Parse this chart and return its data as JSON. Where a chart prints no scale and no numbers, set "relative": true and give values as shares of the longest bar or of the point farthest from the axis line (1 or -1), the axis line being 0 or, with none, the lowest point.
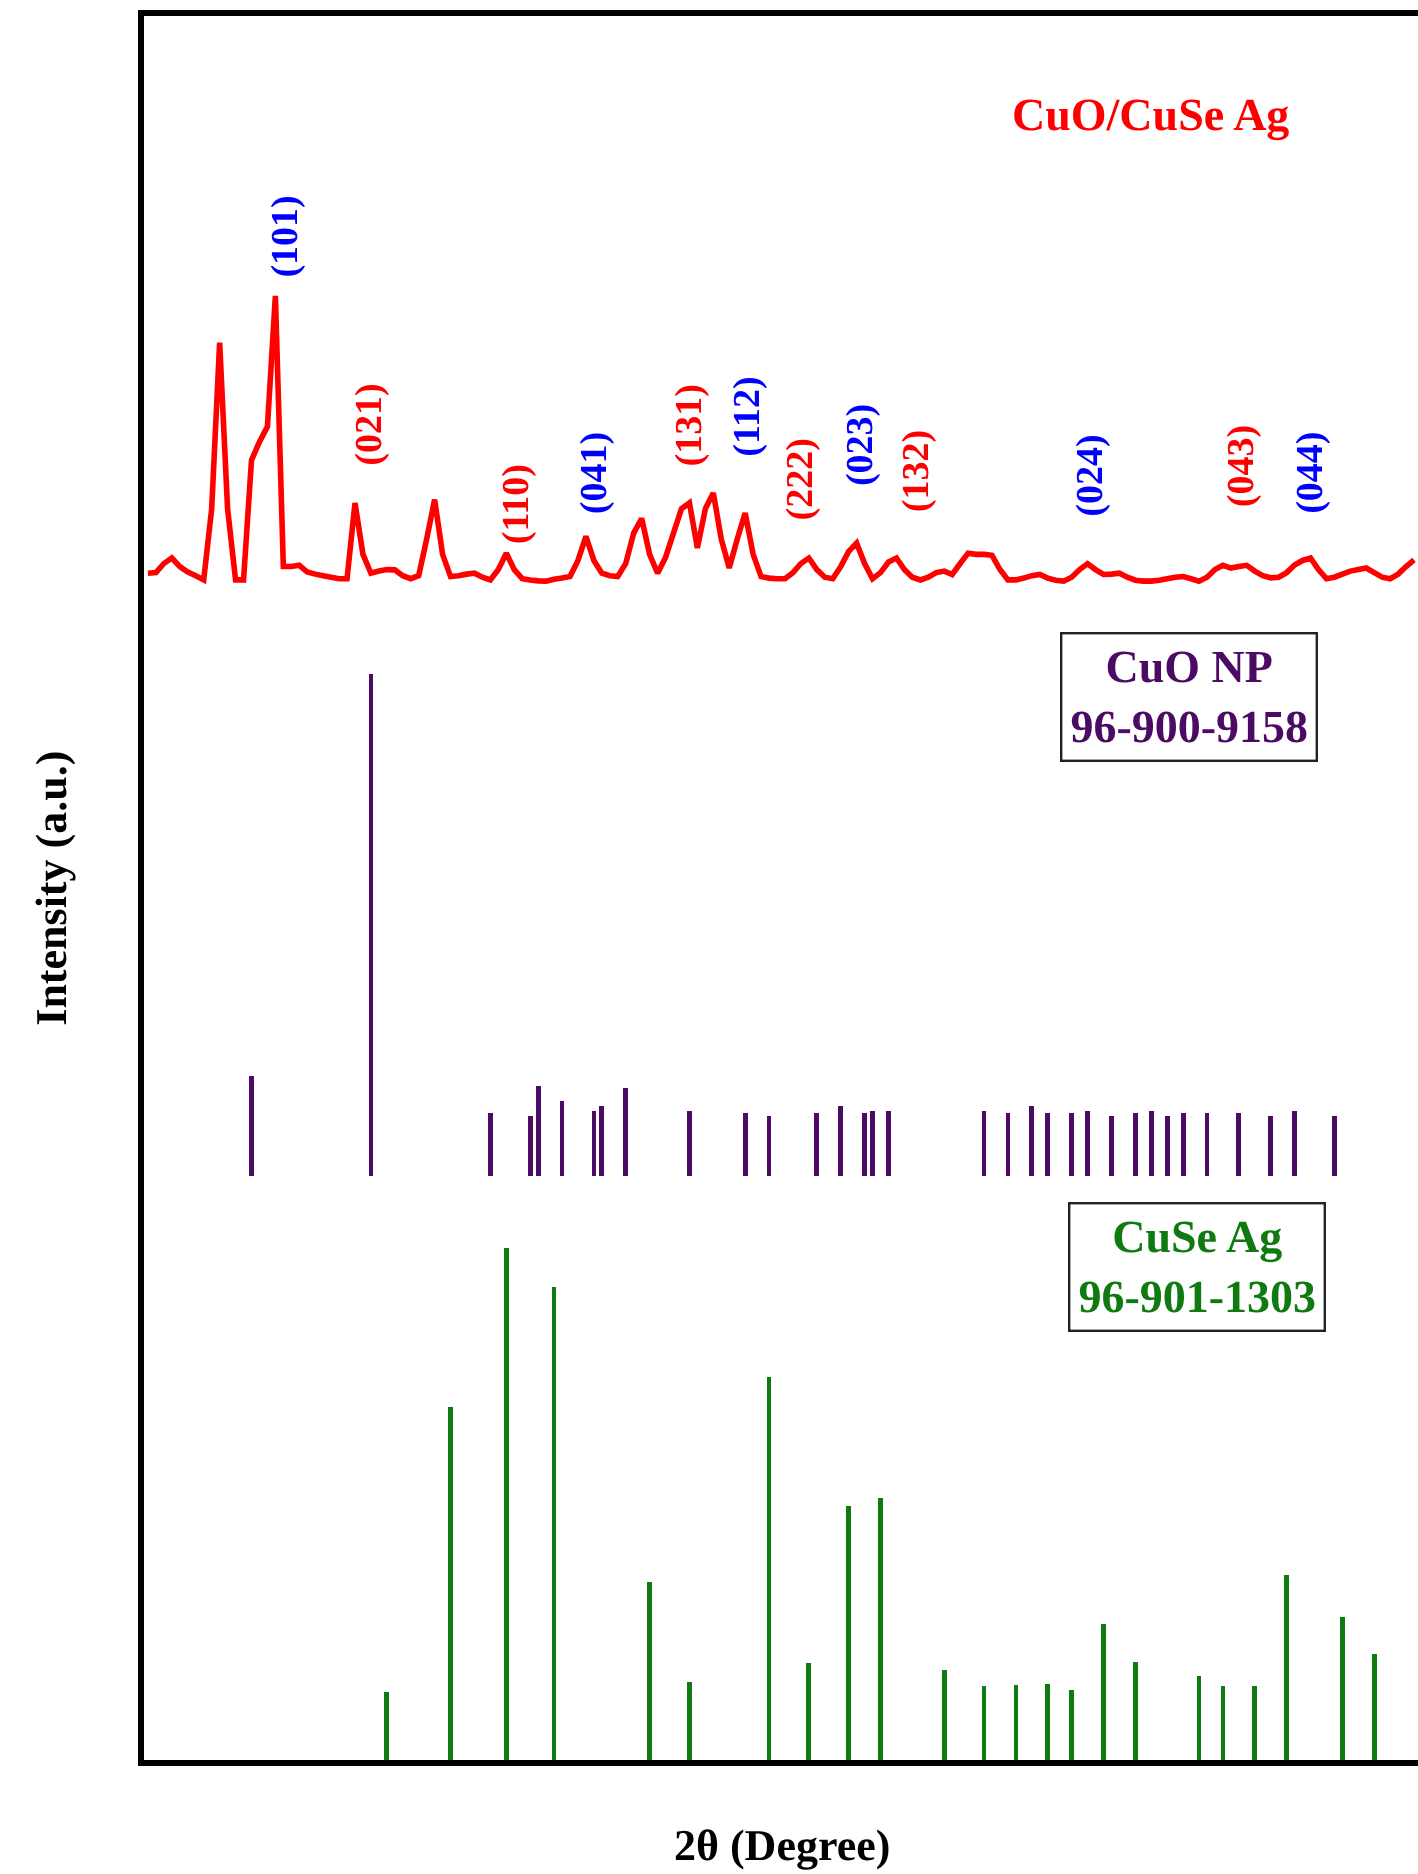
{
  "chart_data": [
    {
      "type": "line",
      "relative": true,
      "annotations": [
        "(101)",
        "(021)",
        "(110)",
        "(041)",
        "(131)",
        "(112)",
        "(222)",
        "(023)",
        "(132)",
        "(024)",
        "(043)",
        "(044)"
      ],
      "categories": [
        null,
        null,
        null,
        null,
        null,
        null,
        null,
        null,
        null,
        null,
        null,
        null,
        null,
        null,
        null,
        null,
        null,
        null,
        null,
        null,
        null,
        null,
        null,
        null,
        null,
        null,
        null,
        null,
        null,
        null,
        null,
        null,
        null,
        null,
        null,
        null,
        null,
        null,
        null,
        null,
        null,
        null,
        null,
        null,
        null,
        null,
        null,
        null,
        null,
        null,
        null,
        null,
        null,
        null,
        null,
        null,
        null,
        null,
        null,
        null,
        null,
        null,
        null,
        null,
        null,
        null,
        null,
        null,
        null,
        null,
        null,
        null,
        null,
        null,
        null,
        null,
        null,
        null,
        null,
        null,
        null,
        null,
        null,
        null,
        null,
        null,
        null,
        null,
        null,
        null,
        null,
        null,
        null,
        null,
        null,
        null,
        null,
        null,
        null,
        null,
        null,
        null,
        null,
        null,
        null,
        null,
        null,
        null,
        null,
        null,
        null,
        null,
        null,
        null,
        null,
        null,
        null,
        null,
        null,
        null,
        null,
        null,
        null,
        null,
        null,
        null,
        null,
        null,
        null,
        null,
        null,
        null,
        null,
        null,
        null,
        null,
        null,
        null,
        null,
        null,
        null,
        null,
        null,
        null,
        null,
        null,
        null,
        null,
        null,
        null,
        null,
        null,
        null,
        null,
        null,
        null,
        null,
        null,
        null,
        null
      ],
      "series": [
        {
          "name": "CuO/CuSe Ag",
          "color": "#ff0000",
          "values": [
            0.088,
            0.09,
            0.12,
            0.138,
            0.11,
            0.092,
            0.08,
            0.066,
            0.3,
            0.846,
            0.3,
            0.066,
            0.066,
            0.46,
            0.52,
            0.57,
            1,
            0.11,
            0.11,
            0.114,
            0.092,
            0.085,
            0.08,
            0.075,
            0.07,
            0.07,
            0.319,
            0.15,
            0.088,
            0.095,
            0.1,
            0.099,
            0.08,
            0.07,
            0.08,
            0.2,
            0.33,
            0.15,
            0.077,
            0.08,
            0.085,
            0.088,
            0.075,
            0.066,
            0.1,
            0.154,
            0.1,
            0.07,
            0.066,
            0.063,
            0.062,
            0.068,
            0.072,
            0.077,
            0.13,
            0.209,
            0.13,
            0.088,
            0.08,
            0.077,
            0.12,
            0.22,
            0.268,
            0.15,
            0.088,
            0.14,
            0.22,
            0.3,
            0.319,
            0.171,
            0.3,
            0.352,
            0.2,
            0.105,
            0.2,
            0.286,
            0.15,
            0.077,
            0.072,
            0.07,
            0.07,
            0.09,
            0.12,
            0.138,
            0.1,
            0.075,
            0.07,
            0.11,
            0.16,
            0.187,
            0.12,
            0.07,
            0.09,
            0.125,
            0.138,
            0.1,
            0.075,
            0.066,
            0.075,
            0.09,
            0.095,
            0.084,
            0.12,
            0.154,
            0.15,
            0.15,
            0.147,
            0.1,
            0.066,
            0.066,
            0.072,
            0.08,
            0.084,
            0.072,
            0.065,
            0.062,
            0.075,
            0.1,
            0.119,
            0.1,
            0.084,
            0.085,
            0.088,
            0.075,
            0.065,
            0.062,
            0.062,
            0.065,
            0.07,
            0.075,
            0.077,
            0.07,
            0.062,
            0.075,
            0.1,
            0.114,
            0.105,
            0.11,
            0.114,
            0.095,
            0.08,
            0.073,
            0.075,
            0.09,
            0.115,
            0.13,
            0.138,
            0.1,
            0.07,
            0.075,
            0.085,
            0.095,
            0.1,
            0.105,
            0.09,
            0.075,
            0.07,
            0.085,
            0.11,
            0.132
          ]
        }
      ]
    },
    {
      "type": "bar",
      "relative": true,
      "ylabel": "Intensity (a.u.)",
      "categories": [
        null,
        null,
        null,
        null,
        null,
        null,
        null,
        null,
        null,
        null,
        null,
        null,
        null,
        null,
        null,
        null,
        null,
        null,
        null,
        null,
        null,
        null,
        null,
        null,
        null,
        null,
        null,
        null,
        null,
        null,
        null,
        null,
        null,
        null,
        null,
        null,
        null,
        null,
        null,
        null,
        null,
        null,
        null,
        null,
        null,
        null,
        null,
        null,
        null,
        null,
        null,
        null,
        null,
        null,
        null,
        null,
        null,
        null,
        null,
        null,
        null,
        null,
        null,
        null,
        null,
        null,
        null,
        null,
        null,
        null,
        null,
        null,
        null,
        null,
        null,
        null,
        null,
        null,
        null,
        null,
        null,
        null,
        null,
        null,
        null,
        null,
        null,
        null,
        null,
        null,
        null,
        null,
        null,
        null,
        null,
        null,
        null,
        null,
        null,
        null,
        null,
        null,
        null,
        null,
        null,
        null,
        null,
        null,
        null,
        null,
        null,
        null,
        null,
        null,
        null,
        null,
        null,
        null,
        null,
        null,
        null,
        null,
        null,
        null,
        null,
        null,
        null,
        null,
        null,
        null,
        null,
        null,
        null,
        null,
        null,
        null,
        null,
        null,
        null,
        null,
        null,
        null,
        null,
        null,
        null,
        null,
        null,
        null,
        null,
        null,
        null,
        null,
        null,
        null,
        null,
        null,
        null,
        null,
        null,
        null
      ],
      "series": [
        {
          "name": "CuO NP\n96-900-9158",
          "color": "#4b0a63",
          "values": [
            null,
            null,
            null,
            null,
            null,
            null,
            null,
            null,
            null,
            null,
            null,
            null,
            null,
            0.2,
            null,
            null,
            null,
            null,
            null,
            null,
            null,
            null,
            null,
            null,
            null,
            null,
            null,
            null,
            1,
            null,
            null,
            null,
            null,
            null,
            null,
            null,
            null,
            null,
            null,
            null,
            null,
            null,
            null,
            0.125,
            null,
            null,
            null,
            null,
            0.12,
            0.18,
            null,
            null,
            0.15,
            null,
            null,
            null,
            0.13,
            0.14,
            null,
            null,
            0.175,
            null,
            null,
            null,
            null,
            null,
            null,
            null,
            0.13,
            null,
            null,
            null,
            null,
            null,
            null,
            0.125,
            null,
            null,
            0.12,
            null,
            null,
            null,
            null,
            null,
            0.125,
            null,
            null,
            0.14,
            null,
            null,
            0.125,
            0.13,
            null,
            0.13,
            null,
            null,
            null,
            null,
            null,
            null,
            null,
            null,
            null,
            null,
            null,
            0.13,
            null,
            null,
            0.125,
            null,
            null,
            0.14,
            null,
            0.125,
            null,
            null,
            0.125,
            null,
            0.13,
            null,
            null,
            0.12,
            null,
            null,
            0.125,
            null,
            0.13,
            null,
            0.12,
            null,
            0.125,
            null,
            null,
            0.125,
            null,
            null,
            null,
            0.125,
            null,
            null,
            null,
            0.12,
            null,
            null,
            0.13,
            null,
            null,
            null,
            null,
            0.12,
            null,
            null,
            null,
            null,
            null,
            null,
            null,
            null,
            null,
            null
          ]
        }
      ]
    },
    {
      "type": "bar",
      "relative": true,
      "xlabel": "2θ (Degree)",
      "categories": [
        null,
        null,
        null,
        null,
        null,
        null,
        null,
        null,
        null,
        null,
        null,
        null,
        null,
        null,
        null,
        null,
        null,
        null,
        null,
        null,
        null,
        null,
        null,
        null,
        null,
        null,
        null,
        null,
        null,
        null,
        null,
        null,
        null,
        null,
        null,
        null,
        null,
        null,
        null,
        null,
        null,
        null,
        null,
        null,
        null,
        null,
        null,
        null,
        null,
        null,
        null,
        null,
        null,
        null,
        null,
        null,
        null,
        null,
        null,
        null,
        null,
        null,
        null,
        null,
        null,
        null,
        null,
        null,
        null,
        null,
        null,
        null,
        null,
        null,
        null,
        null,
        null,
        null,
        null,
        null,
        null,
        null,
        null,
        null,
        null,
        null,
        null,
        null,
        null,
        null,
        null,
        null,
        null,
        null,
        null,
        null,
        null,
        null,
        null,
        null,
        null,
        null,
        null,
        null,
        null,
        null,
        null,
        null,
        null,
        null,
        null,
        null,
        null,
        null,
        null,
        null,
        null,
        null,
        null,
        null,
        null,
        null,
        null,
        null,
        null,
        null,
        null,
        null,
        null,
        null,
        null,
        null,
        null,
        null,
        null,
        null,
        null,
        null,
        null,
        null,
        null,
        null,
        null,
        null,
        null,
        null,
        null,
        null,
        null,
        null,
        null,
        null,
        null,
        null,
        null,
        null,
        null,
        null,
        null,
        null
      ],
      "series": [
        {
          "name": "CuSe Ag\n96-901-1303",
          "color": "#0f7a0f",
          "values": [
            null,
            null,
            null,
            null,
            null,
            null,
            null,
            null,
            null,
            null,
            null,
            null,
            null,
            null,
            null,
            null,
            null,
            null,
            null,
            null,
            null,
            null,
            null,
            null,
            null,
            null,
            null,
            null,
            null,
            null,
            0.133,
            null,
            null,
            null,
            null,
            null,
            null,
            null,
            0.689,
            null,
            null,
            null,
            null,
            null,
            null,
            1,
            null,
            null,
            null,
            null,
            null,
            0.923,
            null,
            null,
            null,
            null,
            null,
            null,
            null,
            null,
            null,
            null,
            null,
            0.347,
            null,
            null,
            null,
            null,
            0.152,
            null,
            null,
            null,
            null,
            null,
            null,
            null,
            null,
            null,
            0.748,
            null,
            null,
            null,
            null,
            0.189,
            null,
            null,
            null,
            null,
            0.496,
            null,
            null,
            null,
            0.512,
            null,
            null,
            null,
            null,
            null,
            null,
            null,
            0.175,
            null,
            null,
            null,
            null,
            0.144,
            null,
            null,
            null,
            0.146,
            null,
            null,
            null,
            0.149,
            null,
            null,
            0.136,
            null,
            null,
            null,
            0.266,
            null,
            null,
            null,
            0.191,
            null,
            null,
            null,
            null,
            null,
            null,
            null,
            0.164,
            null,
            null,
            0.144,
            null,
            null,
            null,
            0.144,
            null,
            null,
            null,
            0.361,
            null,
            null,
            null,
            null,
            null,
            null,
            0.279,
            null,
            null,
            null,
            0.207,
            null,
            null,
            null,
            null,
            null
          ]
        }
      ]
    }
  ]
}
